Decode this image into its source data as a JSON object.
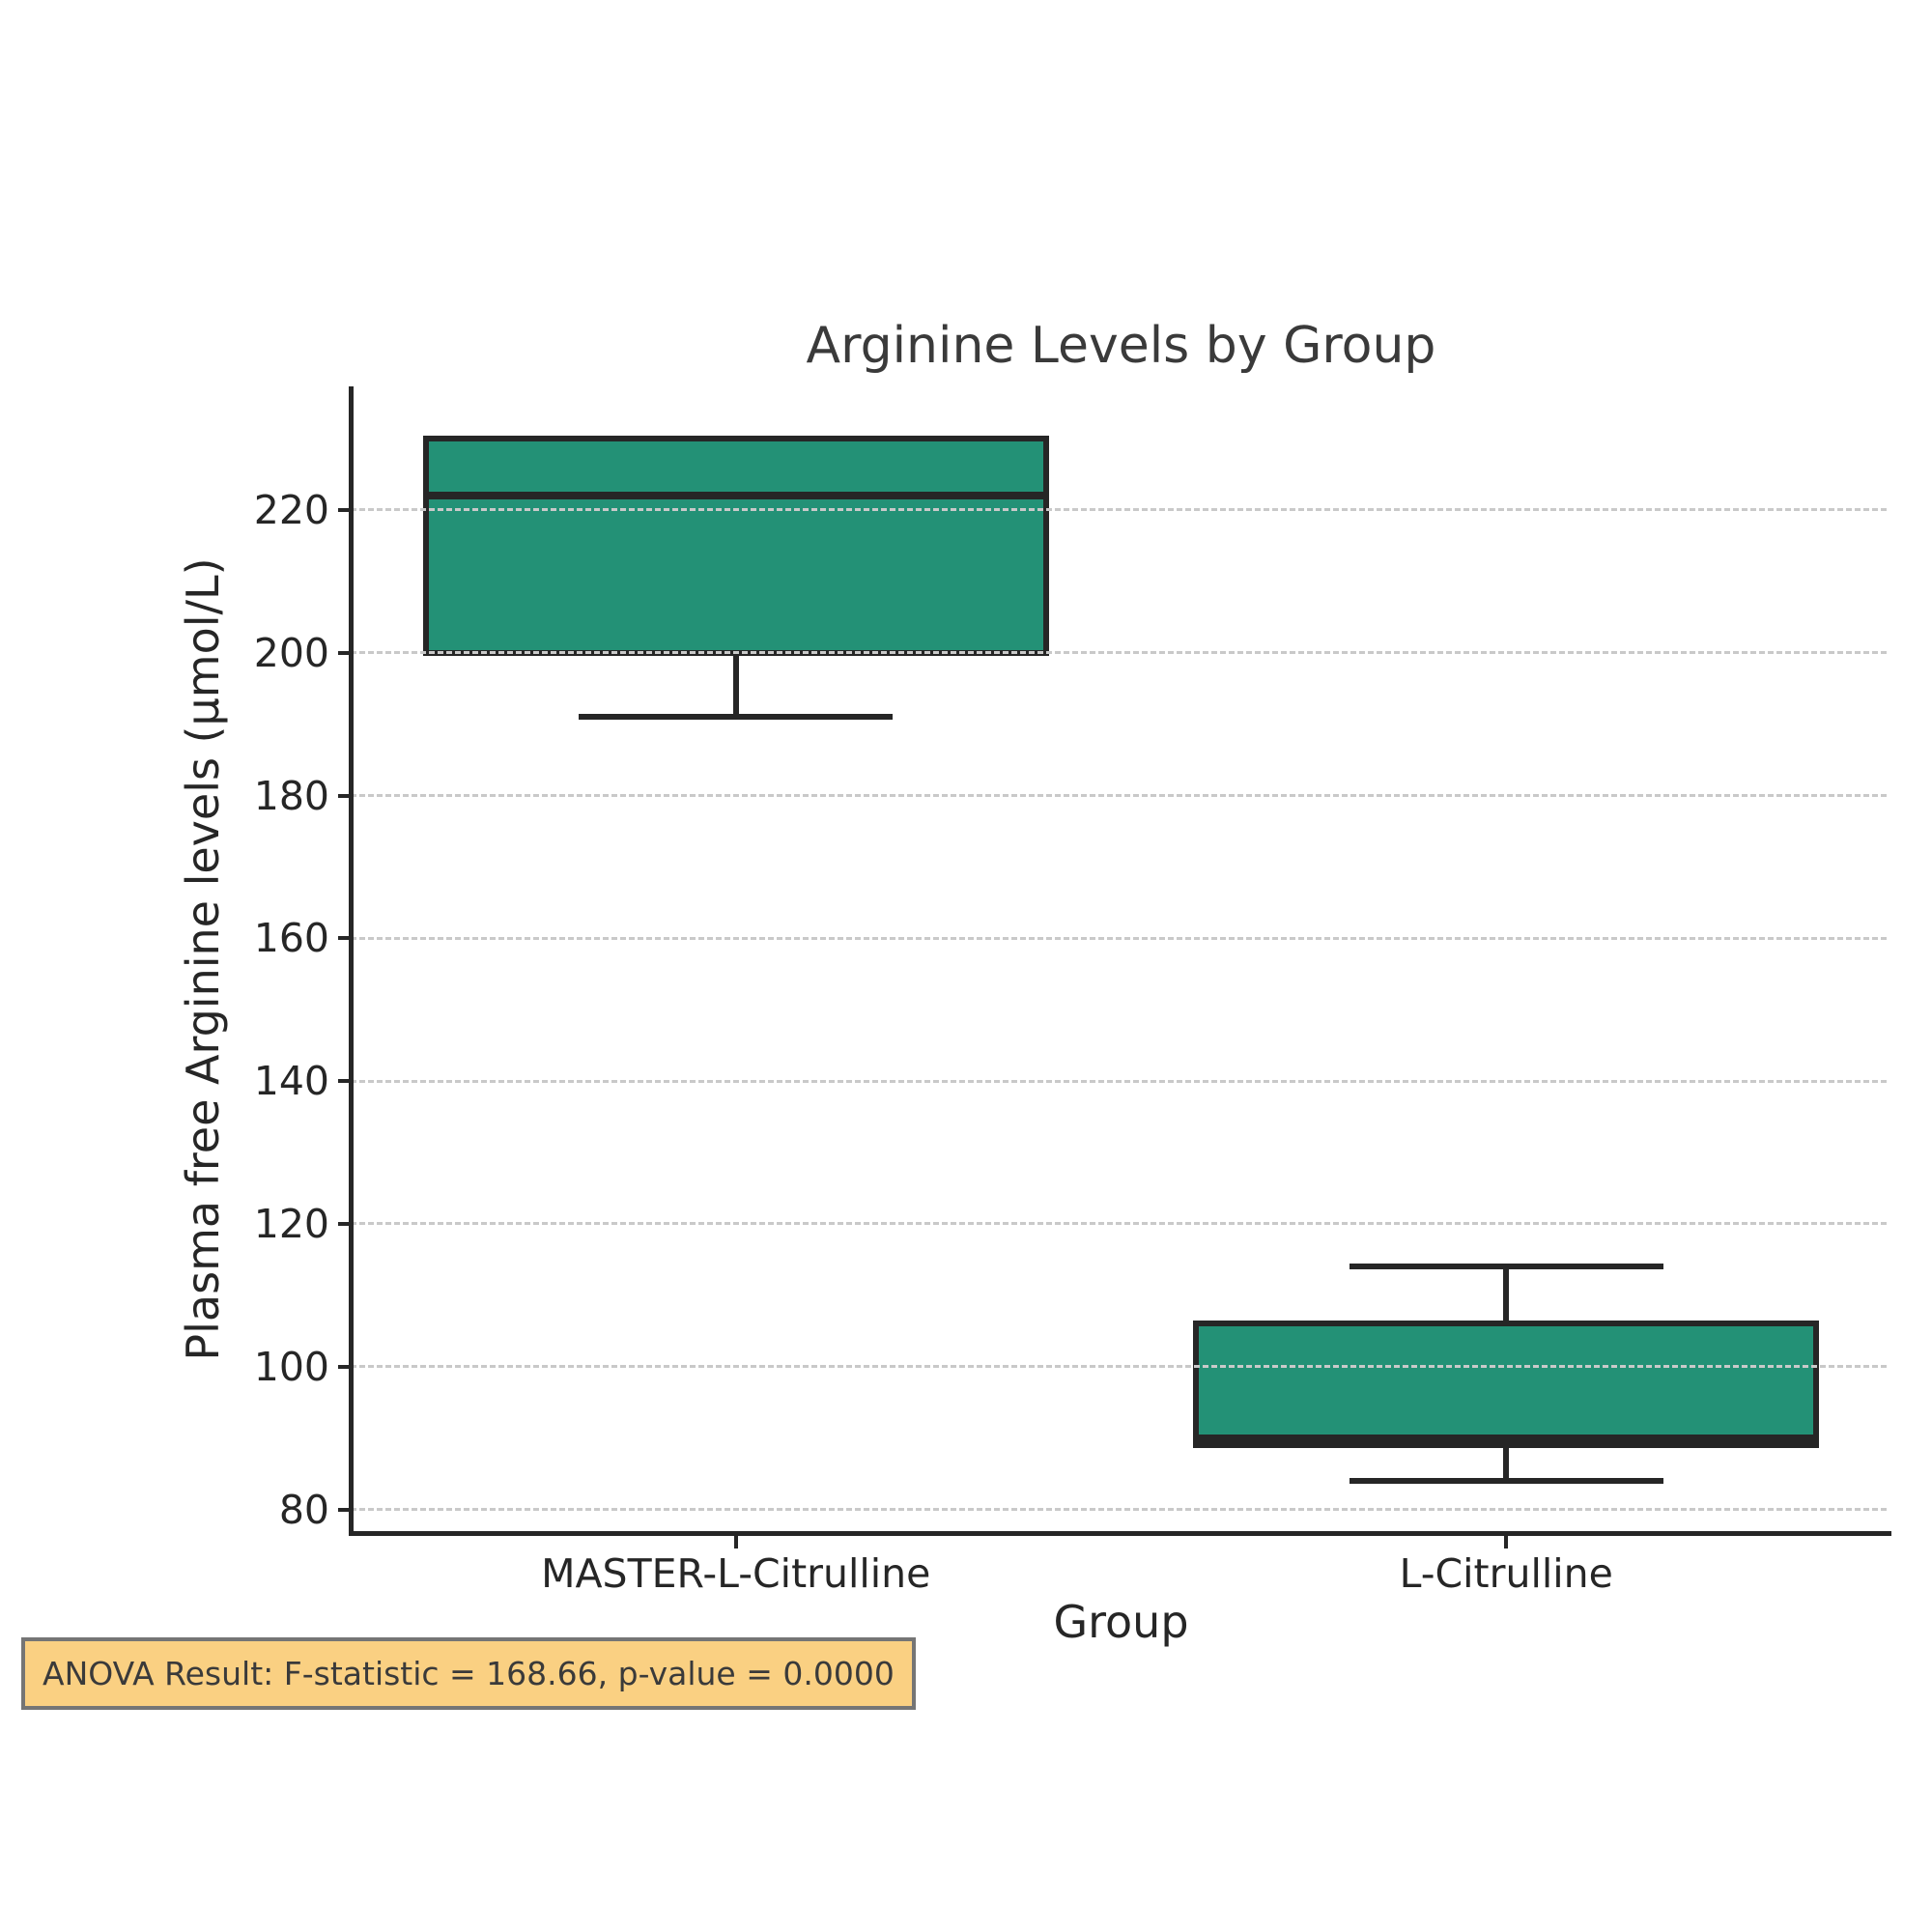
{
  "chart_data": {
    "type": "box",
    "title": "Arginine Levels by Group",
    "xlabel": "Group",
    "ylabel": "Plasma free Arginine levels (μmol/L)",
    "categories": [
      "MASTER-L-Citrulline",
      "L-Citrulline"
    ],
    "series": [
      {
        "name": "MASTER-L-Citrulline",
        "min": 191,
        "q1": 200,
        "median": 222,
        "q3": 230,
        "max": 230
      },
      {
        "name": "L-Citrulline",
        "min": 84,
        "q1": 89,
        "median": 90,
        "q3": 106,
        "max": 114
      }
    ],
    "yticks": [
      80,
      100,
      120,
      140,
      160,
      180,
      200,
      220
    ],
    "ylim": [
      76.7,
      237.3
    ],
    "grid": "horizontal-dashed",
    "legend": "none",
    "colors": {
      "box_fill": "#239176",
      "box_edge": "#262626",
      "grid": "#c9c9c9",
      "spine": "#262626"
    }
  },
  "annotation": {
    "text": "ANOVA Result: F-statistic = 168.66, p-value = 0.0000",
    "bg_color": "#fad082",
    "border_color": "#757575"
  }
}
